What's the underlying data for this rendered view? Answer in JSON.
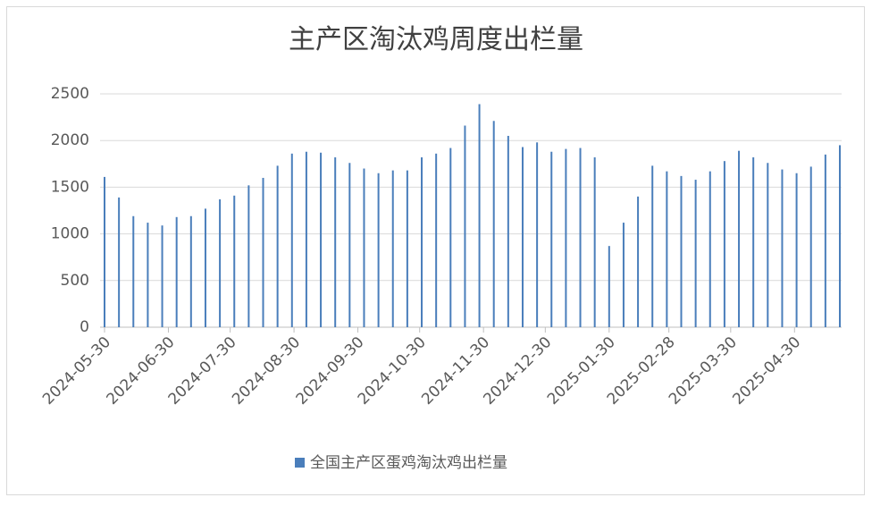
{
  "chart_data": {
    "type": "bar",
    "title": "主产区淘汰鸡周度出栏量",
    "x": [
      "2024-05-30",
      "2024-06-06",
      "2024-06-13",
      "2024-06-20",
      "2024-06-27",
      "2024-07-04",
      "2024-07-11",
      "2024-07-18",
      "2024-07-25",
      "2024-08-01",
      "2024-08-08",
      "2024-08-15",
      "2024-08-22",
      "2024-08-29",
      "2024-09-05",
      "2024-09-12",
      "2024-09-19",
      "2024-09-26",
      "2024-10-03",
      "2024-10-10",
      "2024-10-17",
      "2024-10-24",
      "2024-10-31",
      "2024-11-07",
      "2024-11-14",
      "2024-11-21",
      "2024-11-28",
      "2024-12-05",
      "2024-12-12",
      "2024-12-19",
      "2024-12-26",
      "2025-01-02",
      "2025-01-09",
      "2025-01-16",
      "2025-01-23",
      "2025-01-30",
      "2025-02-06",
      "2025-02-13",
      "2025-02-20",
      "2025-02-27",
      "2025-03-06",
      "2025-03-13",
      "2025-03-20",
      "2025-03-27",
      "2025-04-03",
      "2025-04-10",
      "2025-04-17",
      "2025-04-24",
      "2025-05-01",
      "2025-05-08",
      "2025-05-15",
      "2025-05-22"
    ],
    "series": [
      {
        "name": "全国主产区蛋鸡淘汰鸡出栏量",
        "color": "#4a7ebb",
        "values": [
          1610,
          1390,
          1190,
          1120,
          1090,
          1180,
          1190,
          1270,
          1370,
          1410,
          1520,
          1600,
          1730,
          1860,
          1880,
          1870,
          1820,
          1760,
          1700,
          1650,
          1680,
          1680,
          1820,
          1860,
          1920,
          2160,
          2390,
          2210,
          2050,
          1930,
          1980,
          1880,
          1910,
          1920,
          1820,
          870,
          1120,
          1400,
          1730,
          1670,
          1620,
          1580,
          1670,
          1780,
          1890,
          1820,
          1760,
          1690,
          1650,
          1720,
          1850,
          1950
        ]
      }
    ],
    "xlim": [
      "2024-05-30",
      "2025-05-22"
    ],
    "xticks": [
      "2024-05-30",
      "2024-06-30",
      "2024-07-30",
      "2024-08-30",
      "2024-09-30",
      "2024-10-30",
      "2024-11-30",
      "2024-12-30",
      "2025-01-30",
      "2025-02-28",
      "2025-03-30",
      "2025-04-30"
    ],
    "ylim": [
      0,
      2500
    ],
    "yticks": [
      0,
      500,
      1000,
      1500,
      2000,
      2500
    ],
    "grid": true,
    "legend": "bottom"
  }
}
